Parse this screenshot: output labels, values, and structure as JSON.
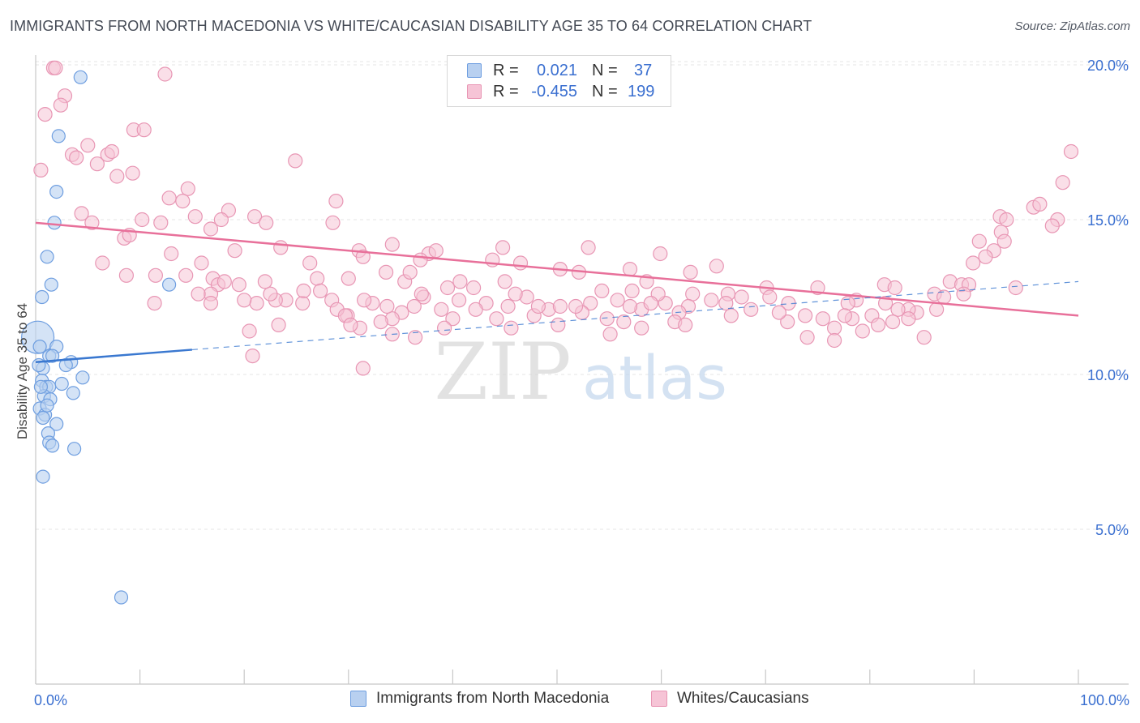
{
  "title": "IMMIGRANTS FROM NORTH MACEDONIA VS WHITE/CAUCASIAN DISABILITY AGE 35 TO 64 CORRELATION CHART",
  "source": "Source: ZipAtlas.com",
  "watermark": {
    "part1": "ZIP",
    "part2": "atlas"
  },
  "legend": {
    "rows": [
      {
        "r_label": "R =",
        "r_value": "0.021",
        "n_label": "N =",
        "n_value": "37"
      },
      {
        "r_label": "R =",
        "r_value": "-0.455",
        "n_label": "N =",
        "n_value": "199"
      }
    ]
  },
  "colors": {
    "blue_fill": "#b8d0f0",
    "blue_stroke": "#6e9ee0",
    "blue_line": "#3a78d0",
    "pink_fill": "#f6c4d6",
    "pink_stroke": "#e896b4",
    "pink_line": "#e8709a",
    "axis_text": "#3a6fd0",
    "grid": "#e4e4e4"
  },
  "chart_data": {
    "type": "scatter",
    "title": "IMMIGRANTS FROM NORTH MACEDONIA VS WHITE/CAUCASIAN DISABILITY AGE 35 TO 64 CORRELATION CHART",
    "xlabel": "",
    "ylabel": "Disability Age 35 to 64",
    "xlim": [
      0,
      100
    ],
    "ylim": [
      0,
      21
    ],
    "x_tick_labels": [
      "0.0%",
      "100.0%"
    ],
    "y_ticks": [
      5,
      10,
      15,
      20
    ],
    "y_tick_labels": [
      "5.0%",
      "10.0%",
      "15.0%",
      "20.0%"
    ],
    "grid": true,
    "series": [
      {
        "name": "Immigrants from North Macedonia",
        "color": "blue",
        "R": 0.021,
        "N": 37,
        "trend": {
          "solid": [
            [
              0,
              10.4
            ],
            [
              15,
              10.8
            ]
          ],
          "dashed": [
            [
              15,
              10.8
            ],
            [
              100,
              13.0
            ]
          ]
        },
        "points": [
          [
            0.2,
            11.2
          ],
          [
            4.3,
            19.6
          ],
          [
            2.2,
            17.7
          ],
          [
            2.0,
            15.9
          ],
          [
            1.8,
            14.9
          ],
          [
            1.1,
            13.8
          ],
          [
            1.5,
            12.9
          ],
          [
            0.6,
            12.5
          ],
          [
            12.8,
            12.9
          ],
          [
            0.4,
            10.9
          ],
          [
            2.0,
            10.9
          ],
          [
            1.3,
            10.6
          ],
          [
            3.4,
            10.4
          ],
          [
            0.7,
            10.2
          ],
          [
            2.9,
            10.3
          ],
          [
            4.5,
            9.9
          ],
          [
            0.6,
            9.8
          ],
          [
            1.0,
            9.6
          ],
          [
            1.3,
            9.6
          ],
          [
            2.5,
            9.7
          ],
          [
            0.8,
            9.3
          ],
          [
            1.4,
            9.2
          ],
          [
            3.6,
            9.4
          ],
          [
            0.4,
            8.9
          ],
          [
            0.9,
            8.7
          ],
          [
            0.7,
            8.6
          ],
          [
            2.0,
            8.4
          ],
          [
            1.2,
            8.1
          ],
          [
            1.3,
            7.8
          ],
          [
            1.6,
            7.7
          ],
          [
            3.7,
            7.6
          ],
          [
            0.7,
            6.7
          ],
          [
            8.2,
            2.8
          ],
          [
            0.3,
            10.3
          ],
          [
            1.1,
            9.0
          ],
          [
            0.5,
            9.6
          ],
          [
            1.6,
            10.6
          ]
        ]
      },
      {
        "name": "Whites/Caucasians",
        "color": "pink",
        "R": -0.455,
        "N": 199,
        "trend": {
          "solid": [
            [
              0,
              14.9
            ],
            [
              100,
              11.9
            ]
          ]
        },
        "points": [
          [
            1.7,
            19.9
          ],
          [
            1.9,
            19.9
          ],
          [
            12.4,
            19.7
          ],
          [
            2.8,
            19.0
          ],
          [
            2.4,
            18.7
          ],
          [
            0.9,
            18.4
          ],
          [
            9.4,
            17.9
          ],
          [
            10.4,
            17.9
          ],
          [
            3.5,
            17.1
          ],
          [
            3.9,
            17.0
          ],
          [
            5.0,
            17.4
          ],
          [
            6.9,
            17.1
          ],
          [
            7.3,
            17.2
          ],
          [
            24.9,
            16.9
          ],
          [
            0.5,
            16.6
          ],
          [
            5.9,
            16.8
          ],
          [
            7.8,
            16.4
          ],
          [
            9.3,
            16.5
          ],
          [
            14.6,
            16.0
          ],
          [
            12.8,
            15.7
          ],
          [
            14.1,
            15.6
          ],
          [
            28.8,
            15.6
          ],
          [
            4.4,
            15.2
          ],
          [
            15.3,
            15.1
          ],
          [
            10.2,
            15.0
          ],
          [
            5.4,
            14.9
          ],
          [
            12.0,
            14.9
          ],
          [
            18.5,
            15.3
          ],
          [
            21.0,
            15.1
          ],
          [
            17.8,
            15.0
          ],
          [
            22.1,
            14.9
          ],
          [
            28.5,
            14.9
          ],
          [
            8.5,
            14.4
          ],
          [
            9.0,
            14.5
          ],
          [
            16.8,
            14.7
          ],
          [
            19.1,
            14.0
          ],
          [
            23.5,
            14.1
          ],
          [
            31.0,
            14.0
          ],
          [
            34.2,
            14.2
          ],
          [
            37.7,
            13.9
          ],
          [
            38.4,
            14.0
          ],
          [
            44.8,
            14.1
          ],
          [
            53.0,
            14.1
          ],
          [
            59.9,
            13.9
          ],
          [
            6.4,
            13.6
          ],
          [
            13.0,
            13.9
          ],
          [
            15.9,
            13.6
          ],
          [
            26.3,
            13.6
          ],
          [
            31.4,
            13.8
          ],
          [
            33.6,
            13.3
          ],
          [
            36.9,
            13.7
          ],
          [
            43.8,
            13.7
          ],
          [
            46.5,
            13.6
          ],
          [
            50.3,
            13.4
          ],
          [
            52.1,
            13.3
          ],
          [
            57.0,
            13.4
          ],
          [
            8.7,
            13.2
          ],
          [
            11.5,
            13.2
          ],
          [
            14.4,
            13.2
          ],
          [
            17.0,
            13.1
          ],
          [
            17.5,
            12.9
          ],
          [
            27.0,
            13.1
          ],
          [
            30.0,
            13.1
          ],
          [
            35.4,
            13.0
          ],
          [
            35.9,
            13.3
          ],
          [
            40.7,
            13.0
          ],
          [
            45.0,
            13.0
          ],
          [
            58.6,
            13.0
          ],
          [
            62.8,
            13.3
          ],
          [
            65.3,
            13.5
          ],
          [
            75.0,
            12.8
          ],
          [
            81.4,
            12.9
          ],
          [
            82.4,
            12.8
          ],
          [
            94.0,
            12.8
          ],
          [
            98.0,
            15.0
          ],
          [
            98.5,
            16.2
          ],
          [
            99.3,
            17.2
          ],
          [
            95.7,
            15.4
          ],
          [
            96.3,
            15.5
          ],
          [
            92.5,
            15.1
          ],
          [
            93.1,
            15.0
          ],
          [
            92.6,
            14.6
          ],
          [
            92.9,
            14.3
          ],
          [
            90.5,
            14.3
          ],
          [
            91.9,
            14.0
          ],
          [
            91.1,
            13.8
          ],
          [
            89.9,
            13.6
          ],
          [
            97.5,
            14.8
          ],
          [
            87.7,
            13.0
          ],
          [
            88.8,
            12.9
          ],
          [
            89.5,
            12.9
          ],
          [
            86.2,
            12.6
          ],
          [
            87.1,
            12.5
          ],
          [
            89.0,
            12.6
          ],
          [
            86.4,
            12.1
          ],
          [
            84.5,
            12.0
          ],
          [
            83.7,
            12.1
          ],
          [
            82.7,
            12.1
          ],
          [
            81.5,
            12.3
          ],
          [
            80.2,
            11.9
          ],
          [
            78.7,
            12.4
          ],
          [
            77.9,
            12.3
          ],
          [
            78.3,
            11.8
          ],
          [
            75.5,
            11.8
          ],
          [
            76.6,
            11.5
          ],
          [
            77.6,
            11.9
          ],
          [
            72.2,
            12.3
          ],
          [
            70.1,
            12.8
          ],
          [
            70.4,
            12.5
          ],
          [
            67.7,
            12.5
          ],
          [
            66.4,
            12.6
          ],
          [
            66.2,
            12.3
          ],
          [
            64.8,
            12.4
          ],
          [
            63.0,
            12.6
          ],
          [
            62.6,
            12.2
          ],
          [
            61.7,
            12.0
          ],
          [
            60.4,
            12.3
          ],
          [
            59.7,
            12.6
          ],
          [
            58.1,
            12.1
          ],
          [
            57.0,
            12.2
          ],
          [
            56.4,
            11.7
          ],
          [
            55.8,
            12.4
          ],
          [
            54.8,
            11.8
          ],
          [
            53.2,
            12.3
          ],
          [
            52.4,
            12.0
          ],
          [
            51.8,
            12.2
          ],
          [
            50.1,
            11.6
          ],
          [
            49.2,
            12.1
          ],
          [
            47.8,
            11.9
          ],
          [
            47.1,
            12.5
          ],
          [
            46.0,
            12.6
          ],
          [
            45.3,
            12.2
          ],
          [
            44.2,
            11.8
          ],
          [
            43.2,
            12.3
          ],
          [
            42.2,
            12.1
          ],
          [
            40.6,
            12.4
          ],
          [
            40.0,
            11.8
          ],
          [
            38.9,
            12.1
          ],
          [
            37.2,
            12.5
          ],
          [
            36.3,
            12.2
          ],
          [
            35.1,
            12.0
          ],
          [
            34.2,
            11.8
          ],
          [
            33.7,
            12.2
          ],
          [
            32.3,
            12.3
          ],
          [
            31.5,
            12.4
          ],
          [
            29.9,
            11.9
          ],
          [
            28.4,
            12.4
          ],
          [
            27.3,
            12.7
          ],
          [
            25.6,
            12.3
          ],
          [
            24.0,
            12.4
          ],
          [
            23.0,
            12.4
          ],
          [
            22.5,
            12.6
          ],
          [
            21.2,
            12.3
          ],
          [
            20.0,
            12.4
          ],
          [
            19.5,
            12.9
          ],
          [
            18.1,
            13.0
          ],
          [
            16.8,
            12.6
          ],
          [
            31.1,
            11.5
          ],
          [
            33.1,
            11.7
          ],
          [
            34.2,
            11.3
          ],
          [
            36.4,
            11.2
          ],
          [
            39.2,
            11.5
          ],
          [
            45.6,
            11.5
          ],
          [
            55.1,
            11.3
          ],
          [
            58.1,
            11.5
          ],
          [
            61.3,
            11.7
          ],
          [
            66.7,
            11.9
          ],
          [
            68.6,
            12.1
          ],
          [
            72.1,
            11.7
          ],
          [
            74.0,
            11.2
          ],
          [
            76.6,
            11.1
          ],
          [
            79.3,
            11.4
          ],
          [
            80.8,
            11.6
          ],
          [
            82.2,
            11.7
          ],
          [
            83.7,
            11.8
          ],
          [
            85.2,
            11.2
          ],
          [
            71.3,
            12.0
          ],
          [
            73.8,
            11.9
          ],
          [
            62.3,
            11.6
          ],
          [
            59.0,
            12.3
          ],
          [
            57.2,
            12.7
          ],
          [
            54.3,
            12.7
          ],
          [
            50.3,
            12.2
          ],
          [
            48.2,
            12.2
          ],
          [
            42.0,
            12.8
          ],
          [
            39.5,
            12.8
          ],
          [
            37.0,
            12.6
          ],
          [
            28.9,
            12.1
          ],
          [
            25.7,
            12.7
          ],
          [
            16.8,
            12.3
          ],
          [
            22.0,
            13.0
          ],
          [
            15.6,
            12.6
          ],
          [
            29.7,
            11.9
          ],
          [
            23.3,
            11.6
          ],
          [
            30.2,
            11.6
          ],
          [
            20.5,
            11.4
          ],
          [
            11.4,
            12.3
          ],
          [
            20.8,
            10.6
          ],
          [
            31.4,
            10.2
          ]
        ]
      }
    ]
  },
  "bottom_legend": [
    {
      "label": "Immigrants from North Macedonia"
    },
    {
      "label": "Whites/Caucasians"
    }
  ]
}
